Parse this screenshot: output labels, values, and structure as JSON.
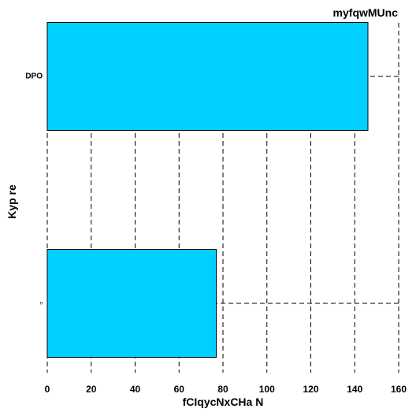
{
  "chart_data": {
    "type": "bar",
    "orientation": "horizontal",
    "title": "myfqwMUnc",
    "xlabel": "fCIqycNxCHa N",
    "ylabel": "Kyp re",
    "categories": [
      "DPO",
      "n"
    ],
    "values": [
      146,
      77
    ],
    "xlim": [
      0,
      160
    ],
    "xticks": [
      0,
      20,
      40,
      60,
      80,
      100,
      120,
      140,
      160
    ],
    "grid": true,
    "bar_color": "#00d0ff"
  }
}
